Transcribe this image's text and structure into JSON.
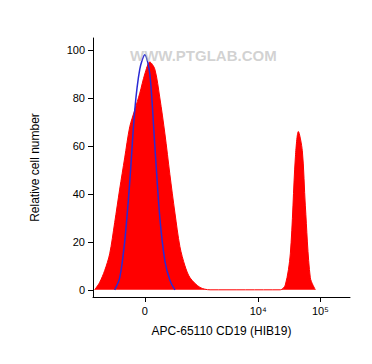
{
  "chart_data": {
    "type": "line",
    "annotations": [
      "WWW.PTGLAB.COM"
    ],
    "x_label": "APC-65110 CD19 (HIB19)",
    "y_label": "Relative cell number",
    "xlim": [
      -1000,
      300000
    ],
    "xticks": [
      0,
      {
        "value": 10000,
        "label": "10⁴"
      },
      {
        "value": 100000,
        "label": "10⁵"
      }
    ],
    "ylim": [
      -3,
      105
    ],
    "yticks": [
      0,
      20,
      40,
      60,
      80,
      100
    ],
    "grid": false,
    "series": [
      {
        "type": "area",
        "color": "#ff0000",
        "x": [
          -939,
          -774,
          -630,
          -510,
          -409,
          -321,
          -245,
          -176,
          -114,
          -56,
          0,
          56,
          114,
          176,
          245,
          321,
          409,
          510,
          630,
          774,
          1140,
          1668,
          22680,
          27300,
          32880,
          39600,
          44280,
          51300,
          57390,
          69000,
          83280
        ],
        "values": [
          0,
          3,
          8,
          15,
          28,
          42,
          55,
          68,
          75,
          82,
          90,
          95,
          92,
          80,
          65,
          48,
          32,
          18,
          10,
          5,
          1,
          0,
          0,
          2,
          15,
          55,
          66,
          58,
          35,
          5,
          0
        ]
      },
      {
        "type": "line",
        "color": "#2a2ad4",
        "x": [
          -409,
          -321,
          -245,
          -176,
          -114,
          -56,
          0,
          56,
          114,
          176,
          245,
          321,
          409
        ],
        "values": [
          0,
          5,
          20,
          45,
          75,
          92,
          98,
          90,
          60,
          30,
          12,
          4,
          0
        ]
      }
    ]
  }
}
